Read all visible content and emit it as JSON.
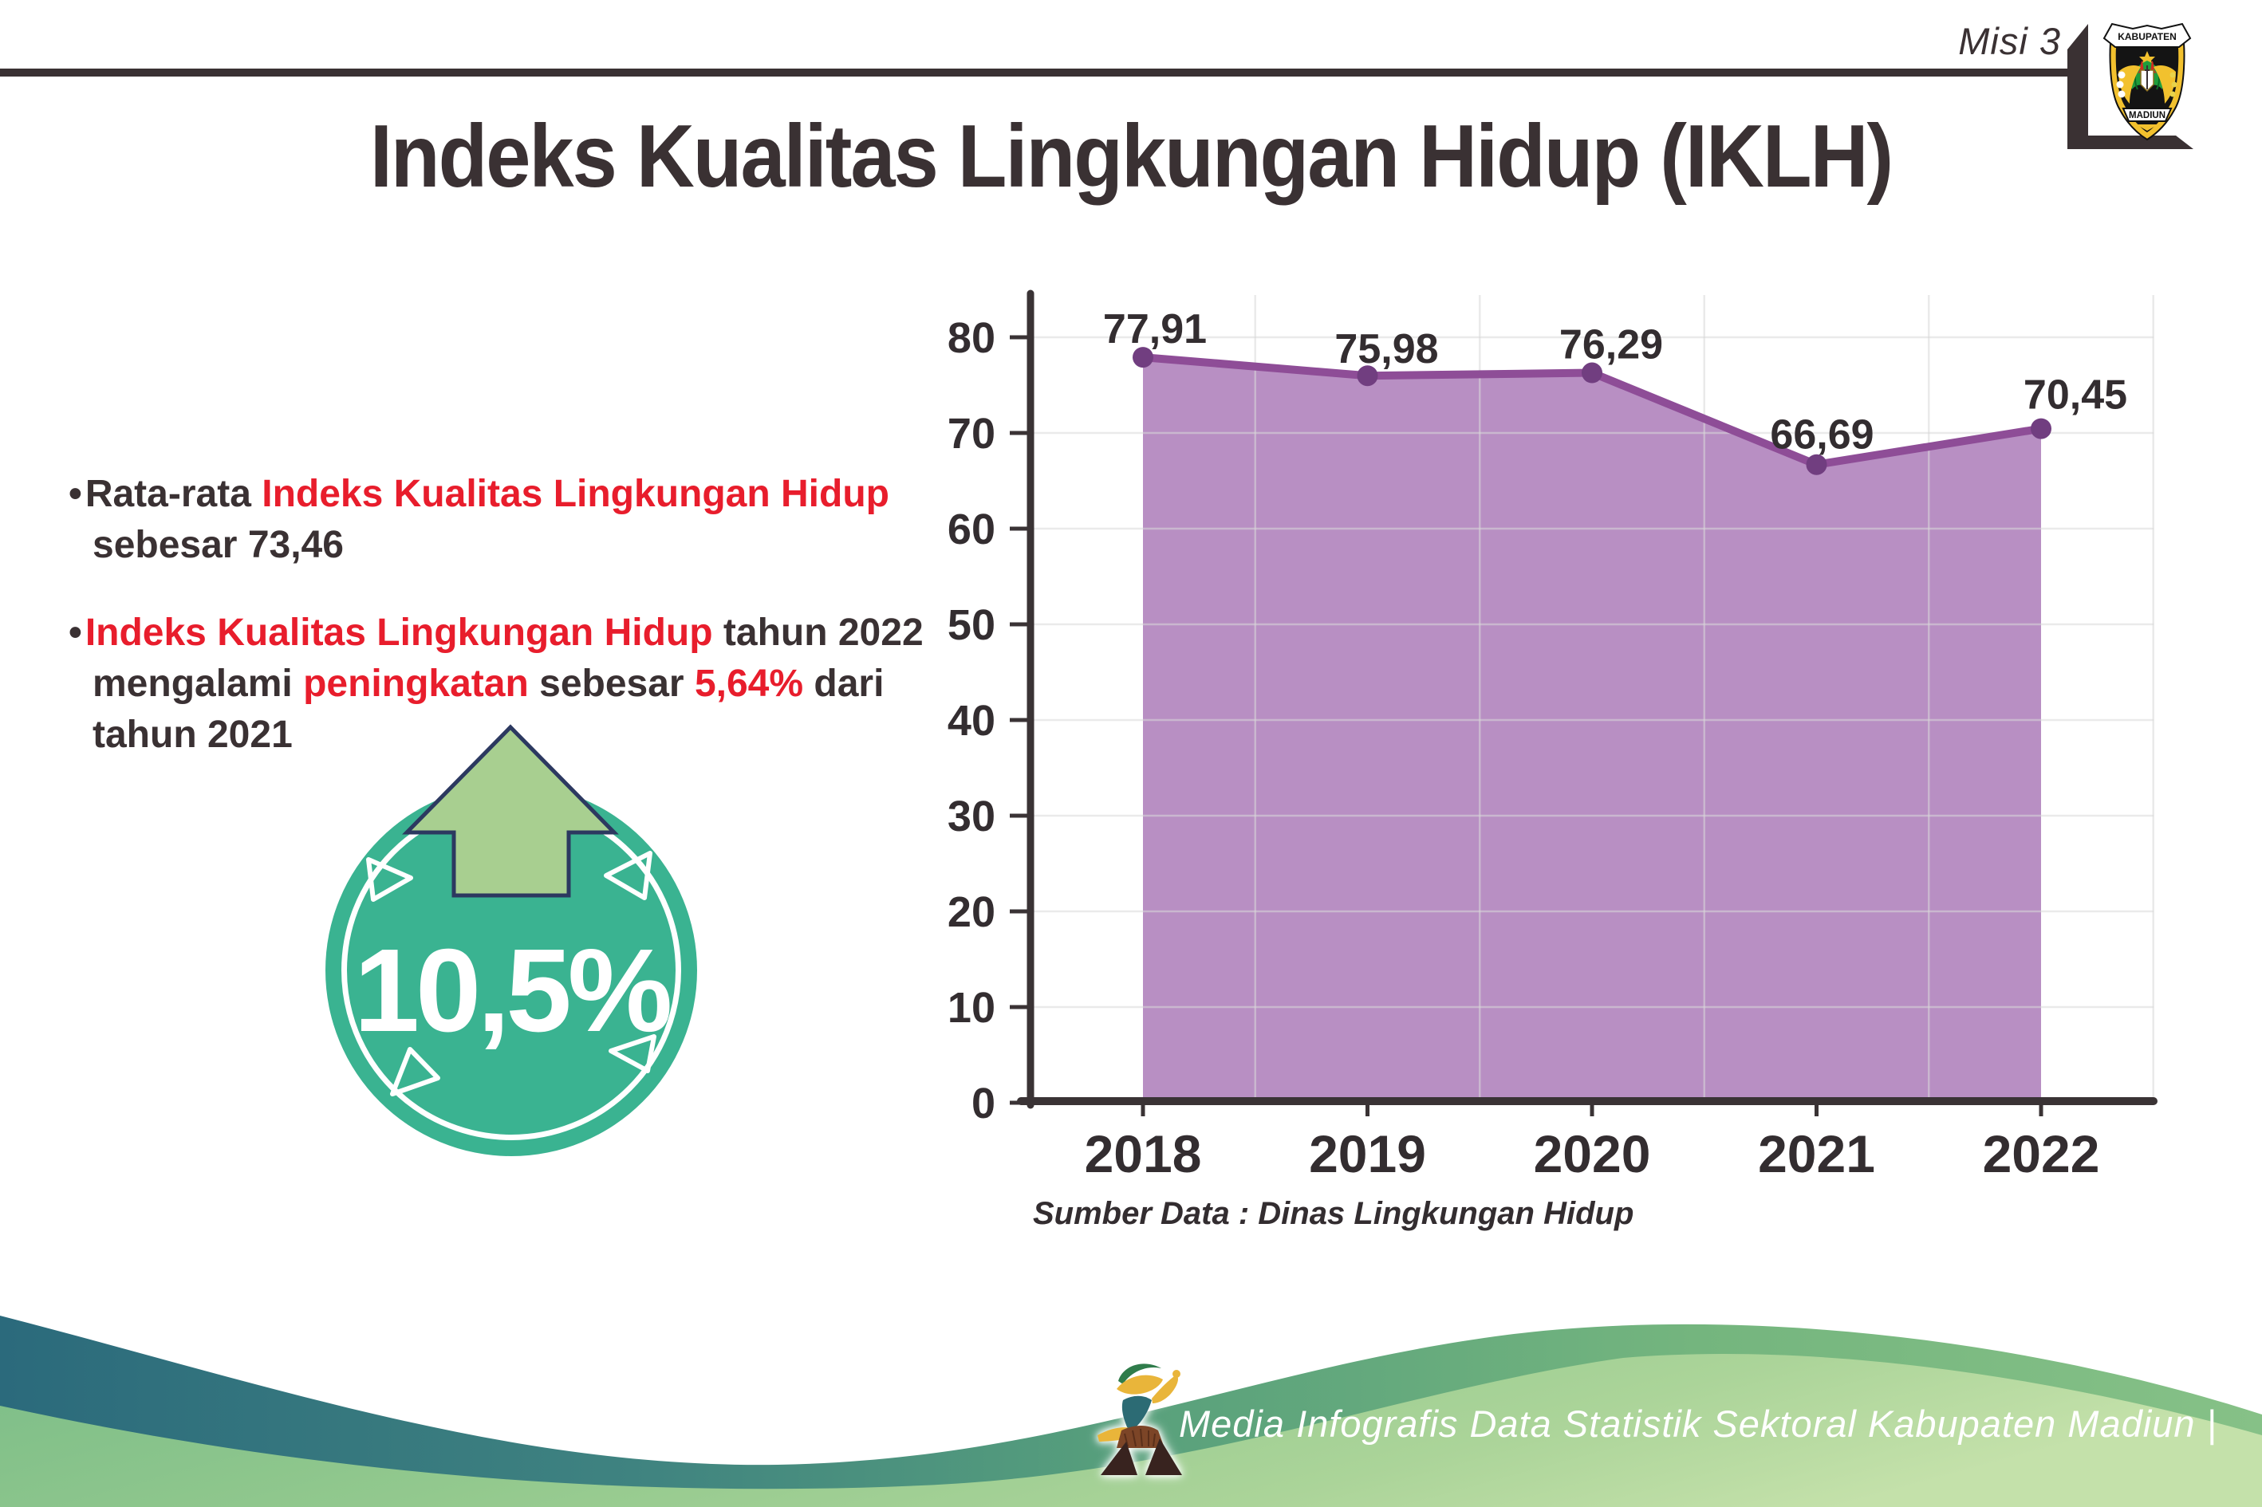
{
  "colors": {
    "dark": "#3a3133",
    "red": "#e81d2c",
    "teal": "#3ab391",
    "arrow": "#a8cf90",
    "arrow_outline": "#2c3960",
    "line": "#8e4d97",
    "marker": "#713e80",
    "fill": "#b88fc3",
    "grid": "#d9d9d9",
    "axis": "#3a3335",
    "axis_text": "#332d30"
  },
  "header": {
    "misi_label": "Misi 3",
    "logo_top": "KABUPATEN",
    "logo_bottom": "MADIUN"
  },
  "title": "Indeks Kualitas Lingkungan Hidup (IKLH)",
  "bullets": {
    "b1": {
      "dot": "•",
      "lines": [
        {
          "runs": [
            {
              "s": "dark",
              "t": "Rata-rata "
            },
            {
              "s": "red",
              "t": "Indeks Kualitas Lingkungan Hidup"
            }
          ]
        },
        {
          "runs": [
            {
              "s": "dark",
              "t": "sebesar 73,46"
            }
          ]
        }
      ]
    },
    "b2": {
      "dot": "•",
      "lines": [
        {
          "runs": [
            {
              "s": "red",
              "t": "Indeks Kualitas Lingkungan Hidup"
            },
            {
              "s": "dark",
              "t": " tahun 2022"
            }
          ]
        },
        {
          "runs": [
            {
              "s": "dark",
              "t": "mengalami "
            },
            {
              "s": "red",
              "t": "peningkatan"
            },
            {
              "s": "dark",
              "t": " sebesar "
            },
            {
              "s": "red",
              "t": "5,64%"
            },
            {
              "s": "dark",
              "t": " dari"
            }
          ]
        },
        {
          "runs": [
            {
              "s": "dark",
              "t": "tahun 2021"
            }
          ]
        }
      ]
    }
  },
  "badge": {
    "value": "10,5%"
  },
  "chart_data": {
    "type": "area",
    "categories": [
      "2018",
      "2019",
      "2020",
      "2021",
      "2022"
    ],
    "values": [
      77.91,
      75.98,
      76.29,
      66.69,
      70.45
    ],
    "point_labels": [
      "77,91",
      "75,98",
      "76,29",
      "66,69",
      "70,45"
    ],
    "title": "",
    "xlabel": "",
    "ylabel": "",
    "ylim": [
      0,
      80
    ],
    "yticks": [
      0,
      10,
      20,
      30,
      40,
      50,
      60,
      70,
      80
    ],
    "grid": "on",
    "legend": "none",
    "source": "Sumber Data : Dinas Lingkungan Hidup"
  },
  "footer": {
    "text": "Media Infografis Data Statistik Sektoral Kabupaten Madiun |"
  }
}
